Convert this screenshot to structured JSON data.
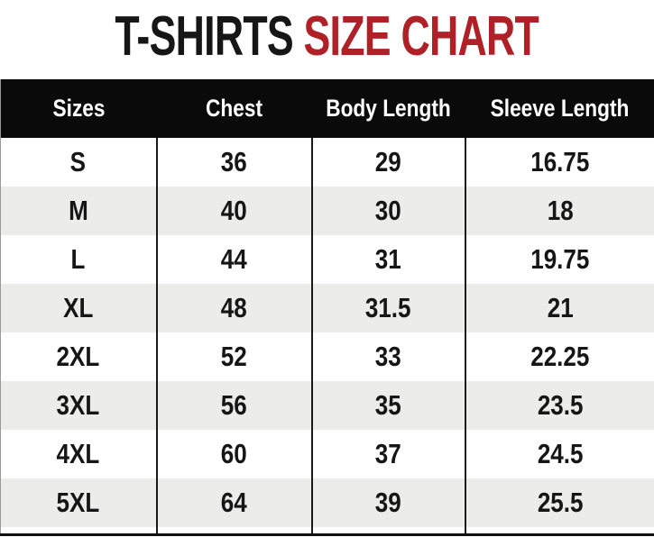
{
  "title": {
    "black": "T-SHIRTS",
    "red": "SIZE CHART"
  },
  "colors": {
    "accent_red": "#B02127",
    "header_bg": "#0A0A0A",
    "row_alt_bg": "#ECECEB",
    "divider": "#1A1A1A"
  },
  "chart_data": {
    "type": "table",
    "title": "T-SHIRTS SIZE CHART",
    "columns": [
      "Sizes",
      "Chest",
      "Body Length",
      "Sleeve Length"
    ],
    "rows": [
      [
        "S",
        "36",
        "29",
        "16.75"
      ],
      [
        "M",
        "40",
        "30",
        "18"
      ],
      [
        "L",
        "44",
        "31",
        "19.75"
      ],
      [
        "XL",
        "48",
        "31.5",
        "21"
      ],
      [
        "2XL",
        "52",
        "33",
        "22.25"
      ],
      [
        "3XL",
        "56",
        "35",
        "23.5"
      ],
      [
        "4XL",
        "60",
        "37",
        "24.5"
      ],
      [
        "5XL",
        "64",
        "39",
        "25.5"
      ]
    ],
    "layout": {
      "header_style": "black background, white text",
      "row_striping": "even rows light gray",
      "legend": "none",
      "grid": "vertical column dividers only"
    }
  }
}
